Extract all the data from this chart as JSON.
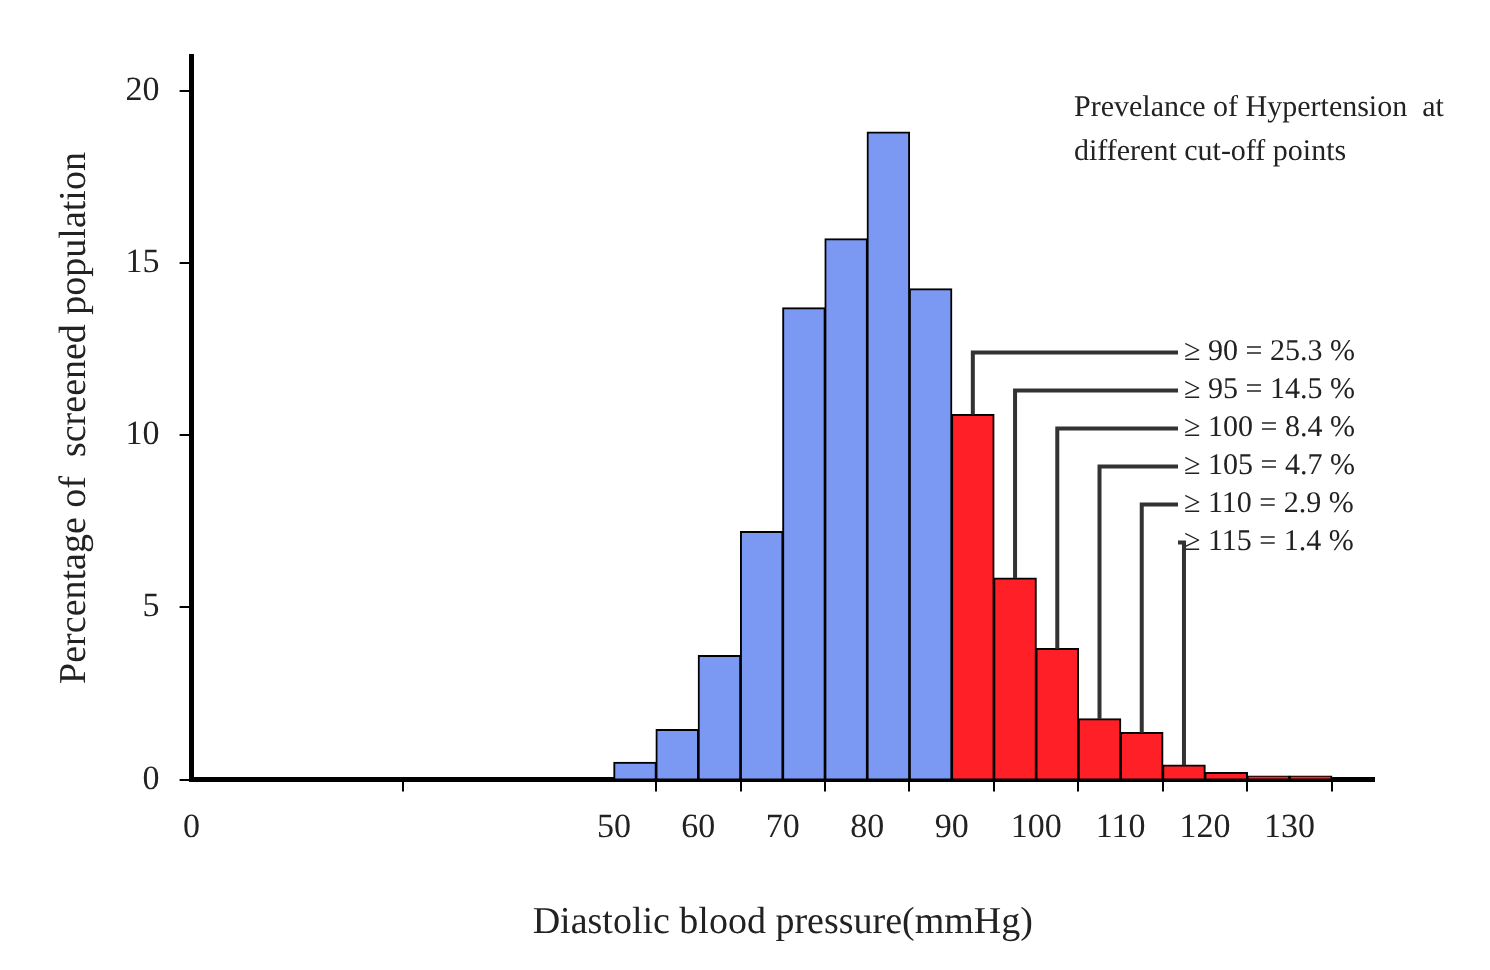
{
  "chart_data": {
    "type": "histogram",
    "xlabel": "Diastolic blood pressure(mmHg)",
    "ylabel": "Percentage of  screened population",
    "bins": [
      50,
      55,
      60,
      65,
      70,
      75,
      80,
      85,
      90,
      95,
      100,
      105,
      110,
      115,
      120,
      125,
      130,
      135
    ],
    "values": [
      0.5,
      1.45,
      3.6,
      7.2,
      13.7,
      15.7,
      18.8,
      14.25,
      10.6,
      5.85,
      3.8,
      1.76,
      1.36,
      0.42,
      0.2,
      0.1,
      0.1
    ],
    "colors": [
      "#7b99f2",
      "#7b99f2",
      "#7b99f2",
      "#7b99f2",
      "#7b99f2",
      "#7b99f2",
      "#7b99f2",
      "#7b99f2",
      "#ff1f26",
      "#ff1f26",
      "#ff1f26",
      "#ff1f26",
      "#ff1f26",
      "#ff1f26",
      "#ff1f26",
      "#ff1f26",
      "#ff1f26"
    ],
    "xlim": [
      0,
      140
    ],
    "xticks": [
      0,
      50,
      60,
      70,
      80,
      90,
      100,
      110,
      120,
      130
    ],
    "ylim": [
      0,
      21
    ],
    "yticks": [
      0,
      5,
      10,
      15,
      20
    ],
    "annotations": [
      "Prevelance of Hypertension  at different cut-off points",
      {
        "text": "≥ 90 = 25.3 %",
        "x": 92.5,
        "y": 10.6
      },
      {
        "text": "≥ 95 = 14.5 %",
        "x": 97.5,
        "y": 5.85
      },
      {
        "text": "≥ 100 = 8.4 %",
        "x": 102.5,
        "y": 3.8
      },
      {
        "text": "≥ 105 = 4.7 %",
        "x": 107.5,
        "y": 1.76
      },
      {
        "text": "≥ 110 = 2.9 %",
        "x": 112.5,
        "y": 1.36
      },
      {
        "text": "≥ 115 = 1.4 %",
        "x": 117.5,
        "y": 0.42
      }
    ]
  }
}
